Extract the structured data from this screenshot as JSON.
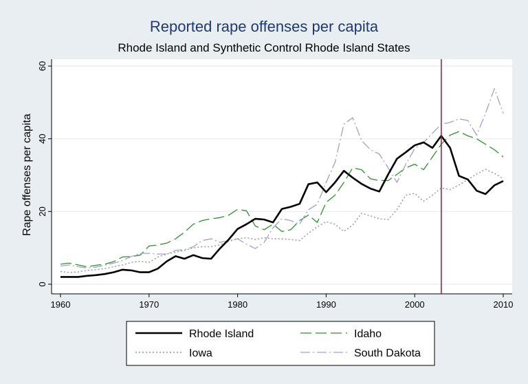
{
  "chart_data": {
    "type": "line",
    "title": "Reported rape offenses per capita",
    "subtitle": "Rhode Island and Synthetic Control Rhode Island States",
    "xlabel": "",
    "ylabel": "Rape offenses per capita",
    "xlim": [
      1960,
      2010
    ],
    "ylim": [
      0,
      60
    ],
    "x_ticks": [
      1960,
      1970,
      1980,
      1990,
      2000,
      2010
    ],
    "y_ticks": [
      0,
      20,
      40,
      60
    ],
    "grid": "horizontal",
    "legend_position": "bottom",
    "vertical_line_x": 2003,
    "x": [
      1960,
      1961,
      1962,
      1963,
      1964,
      1965,
      1966,
      1967,
      1968,
      1969,
      1970,
      1971,
      1972,
      1973,
      1974,
      1975,
      1976,
      1977,
      1978,
      1979,
      1980,
      1981,
      1982,
      1983,
      1984,
      1985,
      1986,
      1987,
      1988,
      1989,
      1990,
      1991,
      1992,
      1993,
      1994,
      1995,
      1996,
      1997,
      1998,
      1999,
      2000,
      2001,
      2002,
      2003,
      2004,
      2005,
      2006,
      2007,
      2008,
      2009,
      2010
    ],
    "series": [
      {
        "name": "Rhode Island",
        "color": "#000000",
        "values": [
          2,
          2,
          2,
          2.3,
          2.5,
          2.8,
          3.3,
          4,
          3.8,
          3.3,
          3.3,
          4.3,
          6.3,
          7.7,
          7,
          8,
          7.2,
          7,
          9.8,
          12.3,
          15.2,
          16.5,
          18,
          17.8,
          17,
          20.7,
          21.3,
          22.1,
          27.5,
          28,
          25.3,
          28,
          31.2,
          29.3,
          27.6,
          26.3,
          25.5,
          30.2,
          34.5,
          36.3,
          38.2,
          39,
          37.5,
          40.8,
          37.5,
          29.8,
          28.8,
          25.7,
          24.8,
          27.2,
          28.4
        ]
      },
      {
        "name": "Idaho",
        "color": "#2f8f2f",
        "values": [
          5.5,
          5.8,
          5.3,
          4.8,
          5.2,
          5.5,
          6.2,
          7.5,
          7.6,
          8,
          10.5,
          10.8,
          11.3,
          12.5,
          14.3,
          16.5,
          17.5,
          18,
          18.3,
          19,
          20.6,
          20.2,
          16,
          15,
          16.5,
          14.5,
          15,
          17.5,
          19,
          17,
          22.5,
          24.5,
          28,
          32,
          31.5,
          29,
          28.5,
          28.5,
          30.2,
          32,
          33,
          31.5,
          35,
          38.5,
          41,
          42,
          40.8,
          40,
          38.5,
          37,
          35
        ]
      },
      {
        "name": "Iowa",
        "color": "#8a9a8a",
        "values": [
          3.5,
          3.2,
          3.4,
          3.8,
          4,
          4.3,
          4.8,
          5.3,
          6,
          6.3,
          6,
          7.5,
          8.3,
          8.8,
          9.3,
          10,
          10.3,
          10.3,
          10.8,
          11.8,
          12.5,
          12.8,
          12.3,
          12.8,
          12.5,
          12.5,
          12.3,
          12,
          14,
          15.8,
          17.2,
          16.5,
          14.5,
          16.3,
          19.5,
          18.8,
          18,
          17.8,
          20.5,
          24.5,
          25,
          22.8,
          24.5,
          26.5,
          26,
          27.3,
          28.8,
          30.3,
          31.6,
          30.5,
          29
        ]
      },
      {
        "name": "South Dakota",
        "color": "#9f9fd0",
        "values": [
          5,
          5.3,
          4.8,
          4.5,
          4.7,
          5.2,
          5.8,
          6.5,
          7.6,
          8.5,
          8.5,
          8.3,
          8.3,
          9.3,
          9.5,
          10.3,
          12,
          12.5,
          11.5,
          12,
          12.5,
          11,
          9.8,
          11.5,
          15.5,
          18,
          17.5,
          16.5,
          20.5,
          22,
          28,
          33.5,
          44,
          45.8,
          39.5,
          37,
          35.8,
          32,
          28,
          33,
          37.3,
          39,
          41.5,
          44,
          44.5,
          45.5,
          45,
          41,
          47,
          53.8,
          47
        ]
      }
    ]
  }
}
